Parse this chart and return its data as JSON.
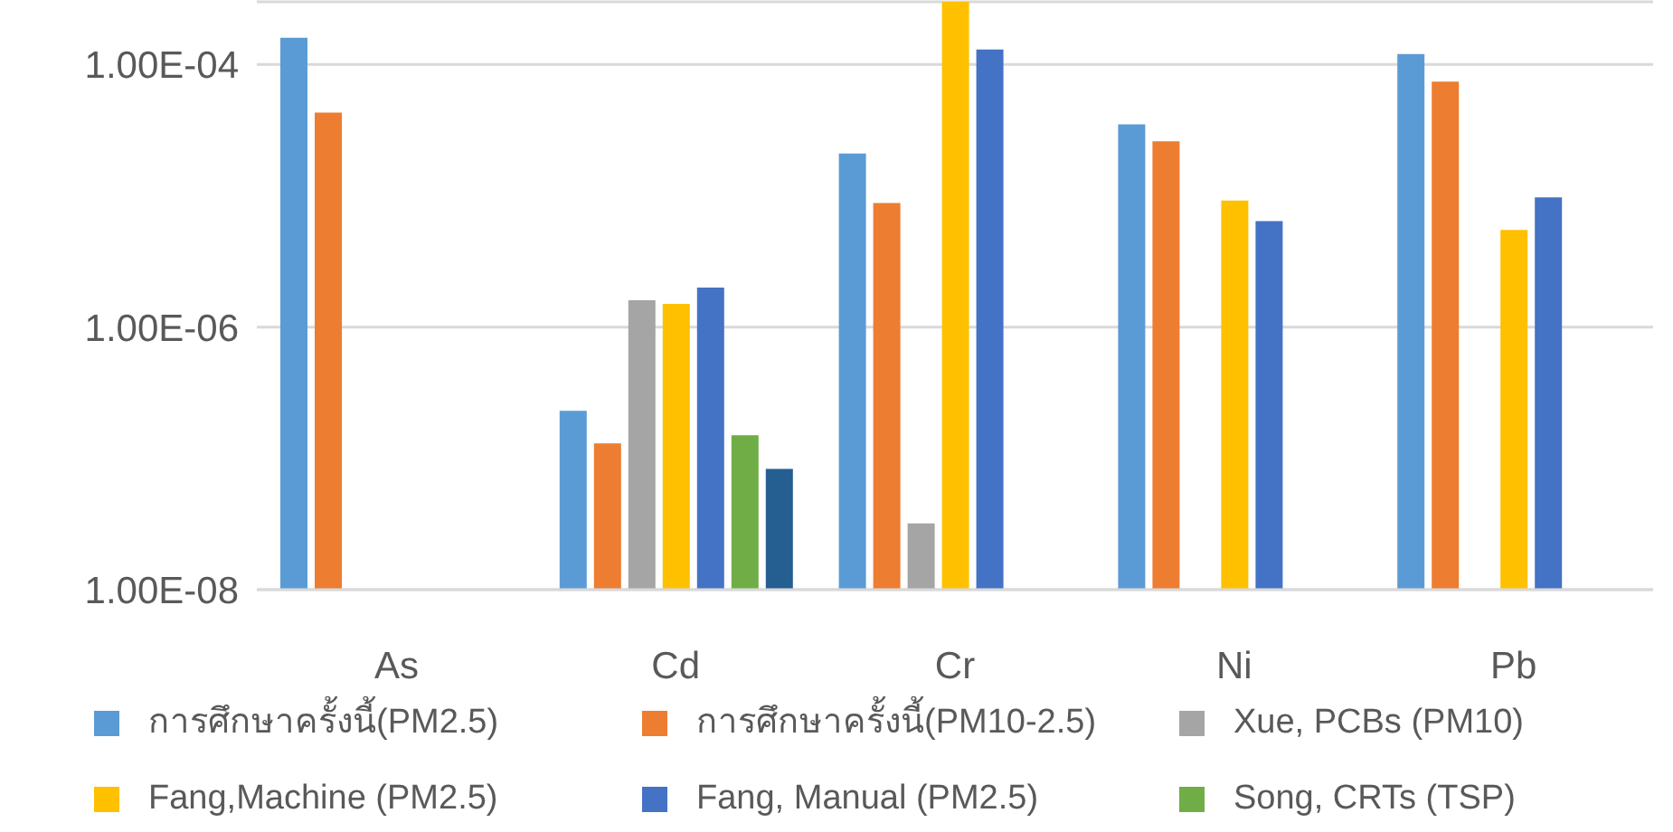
{
  "chart_data": {
    "type": "bar",
    "categories": [
      "As",
      "Cd",
      "Cr",
      "Ni",
      "Pb"
    ],
    "series": [
      {
        "name": "การศึกษาครั้งนี้(PM2.5)",
        "color": "#5b9bd5",
        "values": [
          0.00016,
          2.3e-07,
          2.1e-05,
          3.5e-05,
          0.00012
        ]
      },
      {
        "name": "การศึกษาครั้งนี้(PM10-2.5)",
        "color": "#ed7d31",
        "values": [
          4.3e-05,
          1.3e-07,
          8.8e-06,
          2.6e-05,
          7.4e-05
        ]
      },
      {
        "name": "Xue, PCBs (PM10)",
        "color": "#a5a5a5",
        "values": [
          null,
          1.6e-06,
          3.2e-08,
          null,
          null
        ]
      },
      {
        "name": "Fang,Machine (PM2.5)",
        "color": "#ffc000",
        "values": [
          null,
          1.5e-06,
          0.0003,
          9.2e-06,
          5.5e-06
        ]
      },
      {
        "name": "Fang, Manual (PM2.5)",
        "color": "#4472c4",
        "values": [
          null,
          2e-06,
          0.00013,
          6.4e-06,
          9.7e-06
        ]
      },
      {
        "name": "Song, CRTs (TSP)",
        "color": "#70ad47",
        "values": [
          null,
          1.5e-07,
          null,
          null,
          null
        ]
      },
      {
        "color": "#255e91",
        "values": [
          null,
          8.3e-08,
          null,
          null,
          null
        ]
      }
    ],
    "log": true,
    "ylim": [
      1e-08,
      0.0003
    ],
    "yticks": [
      {
        "value": 1e-08,
        "label": "1.00E-08"
      },
      {
        "value": 1e-06,
        "label": "1.00E-06"
      },
      {
        "value": 0.0001,
        "label": "1.00E-04"
      }
    ],
    "grid": "y",
    "legend": "bottom"
  }
}
